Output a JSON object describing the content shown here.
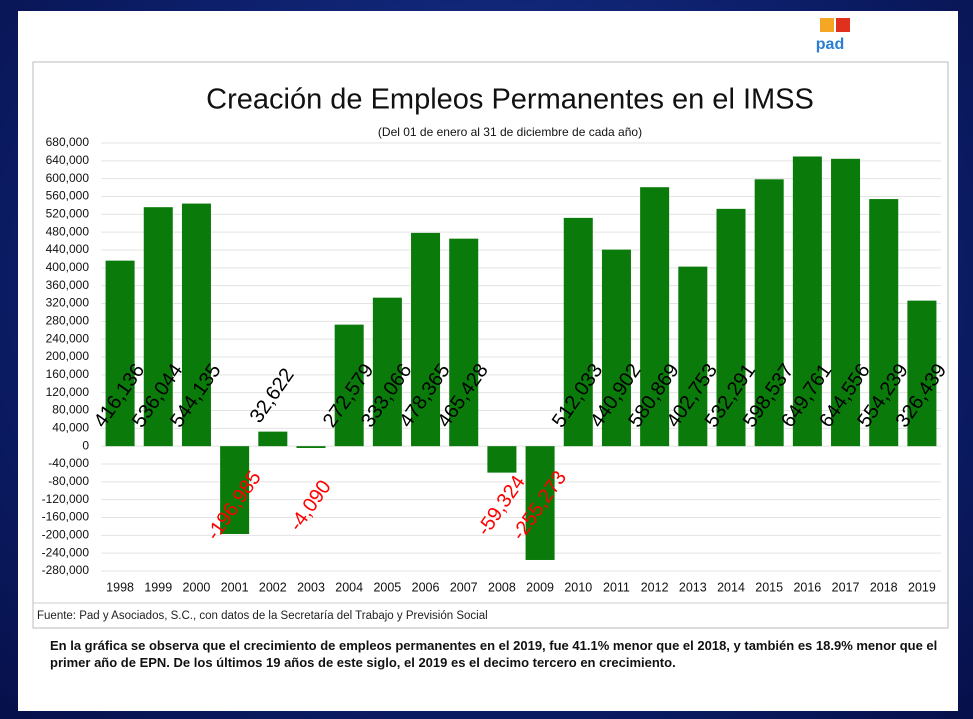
{
  "logo": "pad",
  "chart_data": {
    "type": "bar",
    "title": "Creación de Empleos Permanentes en el IMSS",
    "subtitle": "(Del 01 de enero  al 31 de diciembre de cada año)",
    "source": "Fuente: Pad y Asociados, S.C., con datos de la Secretaría del Trabajo y Previsión Social",
    "categories": [
      "1998",
      "1999",
      "2000",
      "2001",
      "2002",
      "2003",
      "2004",
      "2005",
      "2006",
      "2007",
      "2008",
      "2009",
      "2010",
      "2011",
      "2012",
      "2013",
      "2014",
      "2015",
      "2016",
      "2017",
      "2018",
      "2019"
    ],
    "values": [
      416136,
      536044,
      544135,
      -196985,
      32622,
      -4090,
      272579,
      333066,
      478365,
      465428,
      -59324,
      -255273,
      512033,
      440902,
      580869,
      402753,
      532291,
      598537,
      649761,
      644556,
      554239,
      326439
    ],
    "value_labels": [
      "416,136",
      "536,044",
      "544,135",
      "-196,985",
      "32,622",
      "-4,090",
      "272,579",
      "333,066",
      "478,365",
      "465,428",
      "-59,324",
      "-255,273",
      "512,033",
      "440,902",
      "580,869",
      "402,753",
      "532,291",
      "598,537",
      "649,761",
      "644,556",
      "554,239",
      "326,439"
    ],
    "color": "#0a7a0a",
    "positive_label_color": "#000000",
    "negative_label_color": "#ff0000",
    "ylim": [
      -280000,
      680000
    ],
    "yticks": [
      {
        "value": -280000,
        "label": "-280,000"
      },
      {
        "value": -240000,
        "label": "-240,000"
      },
      {
        "value": -200000,
        "label": "-200,000"
      },
      {
        "value": -160000,
        "label": "-160,000"
      },
      {
        "value": -120000,
        "label": "-120,000"
      },
      {
        "value": -80000,
        "label": "-80,000"
      },
      {
        "value": -40000,
        "label": "-40,000"
      },
      0,
      {
        "value": 40000,
        "label": "40,000"
      },
      {
        "value": 80000,
        "label": "80,000"
      },
      {
        "value": 120000,
        "label": "120,000"
      },
      {
        "value": 160000,
        "label": "160,000"
      },
      {
        "value": 200000,
        "label": "200,000"
      },
      {
        "value": 240000,
        "label": "240,000"
      },
      {
        "value": 280000,
        "label": "280,000"
      },
      {
        "value": 320000,
        "label": "320,000"
      },
      {
        "value": 360000,
        "label": "360,000"
      },
      {
        "value": 400000,
        "label": "400,000"
      },
      {
        "value": 440000,
        "label": "440,000"
      },
      {
        "value": 480000,
        "label": "480,000"
      },
      {
        "value": 520000,
        "label": "520,000"
      },
      {
        "value": 560000,
        "label": "560,000"
      },
      {
        "value": 600000,
        "label": "600,000"
      },
      {
        "value": 640000,
        "label": "640,000"
      },
      {
        "value": 680000,
        "label": "680,000"
      }
    ],
    "grid": true
  },
  "caption": "En la gráfica se observa que el crecimiento de empleos permanentes en el 2019, fue 41.1% menor que el 2018, y también es 18.9% menor que el primer año de EPN. De los últimos 19 años de este siglo, el 2019 es el decimo tercero en crecimiento."
}
